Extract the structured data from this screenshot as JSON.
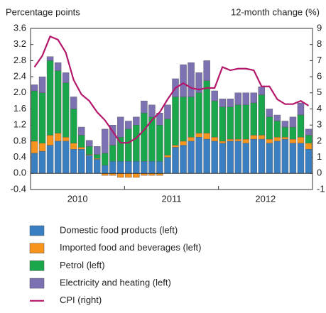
{
  "chart_data": {
    "type": "bar",
    "y_label": "Percentage points",
    "y2_label": "12-month change (%)",
    "categories": [
      null,
      null,
      null,
      null,
      null,
      null,
      null,
      null,
      null,
      null,
      null,
      null,
      null,
      null,
      null,
      null,
      null,
      null,
      null,
      null,
      null,
      null,
      null,
      null,
      null,
      null,
      null,
      null,
      null,
      null,
      null,
      null,
      null,
      null,
      null,
      null
    ],
    "x_groups": [
      "2010",
      "2011",
      "2012"
    ],
    "ylim": [
      -0.4,
      3.6
    ],
    "yticks": [
      -0.4,
      {
        "value": 0,
        "label": "0.0"
      },
      0.4,
      0.8,
      1.2,
      1.6,
      {
        "value": 2,
        "label": "2.0"
      },
      2.4,
      2.8,
      3.2,
      3.6
    ],
    "y2lim": [
      -1,
      9
    ],
    "y2ticks": [
      -1,
      0,
      1,
      2,
      3,
      4,
      5,
      6,
      7,
      8,
      9
    ],
    "series": [
      {
        "name": "Domestic food products (left)",
        "color": "#3a7fc1",
        "values": [
          0.5,
          0.55,
          0.7,
          0.8,
          0.8,
          0.6,
          0.6,
          0.45,
          0.35,
          0.2,
          0.3,
          0.3,
          0.3,
          0.3,
          0.3,
          0.3,
          0.3,
          0.4,
          0.65,
          0.7,
          0.8,
          0.9,
          0.85,
          0.8,
          0.75,
          0.8,
          0.8,
          0.75,
          0.85,
          0.85,
          0.75,
          0.8,
          0.85,
          0.75,
          0.75,
          0.6
        ]
      },
      {
        "name": "Imported food and beverages (left)",
        "color": "#f7941d",
        "values": [
          0.3,
          0.2,
          0.25,
          0.2,
          0.1,
          0.15,
          0.05,
          0.02,
          0.02,
          -0.05,
          -0.05,
          -0.1,
          -0.1,
          -0.1,
          -0.05,
          -0.05,
          -0.05,
          0.05,
          0.05,
          0.1,
          0.1,
          0.1,
          0.15,
          0.1,
          0.05,
          0.05,
          0.05,
          0.1,
          0.1,
          0.1,
          0.1,
          0.1,
          0.05,
          0.1,
          0.15,
          0.15
        ]
      },
      {
        "name": "Petrol (left)",
        "color": "#1aa64a",
        "values": [
          1.25,
          1.25,
          1.85,
          1.55,
          1.35,
          0.85,
          0.3,
          0.2,
          0.1,
          0.3,
          0.4,
          0.6,
          0.8,
          0.9,
          1.2,
          1.1,
          0.9,
          0.9,
          1.2,
          1.1,
          1.0,
          1.0,
          1.3,
          0.9,
          0.85,
          0.8,
          0.85,
          0.85,
          0.8,
          1.0,
          0.55,
          0.4,
          0.25,
          0.3,
          0.55,
          0.2
        ]
      },
      {
        "name": "Electricity and heating (left)",
        "color": "#7b71b3",
        "values": [
          0.15,
          0.4,
          0.1,
          0.2,
          0.25,
          0.3,
          0.2,
          0.15,
          0.2,
          0.6,
          0.5,
          0.5,
          0.2,
          0.2,
          0.3,
          0.3,
          0.3,
          0.35,
          0.45,
          0.8,
          0.85,
          0.5,
          0.5,
          0.25,
          0.2,
          0.2,
          0.3,
          0.3,
          0.25,
          0.2,
          0.2,
          0.15,
          0.15,
          0.25,
          0.3,
          0.15
        ]
      },
      {
        "name": "CPI (right)",
        "color": "#b5176b",
        "axis": "y2",
        "values": [
          6.6,
          7.3,
          8.5,
          8.3,
          7.5,
          5.8,
          4.9,
          4.5,
          3.8,
          3.3,
          2.6,
          1.9,
          1.9,
          2.2,
          2.7,
          3.3,
          3.8,
          4.6,
          5.3,
          5.6,
          5.3,
          5.2,
          5.3,
          5.3,
          6.6,
          6.4,
          6.5,
          6.5,
          6.4,
          5.4,
          5.4,
          4.6,
          4.3,
          4.3,
          4.5,
          4.2
        ]
      }
    ]
  }
}
